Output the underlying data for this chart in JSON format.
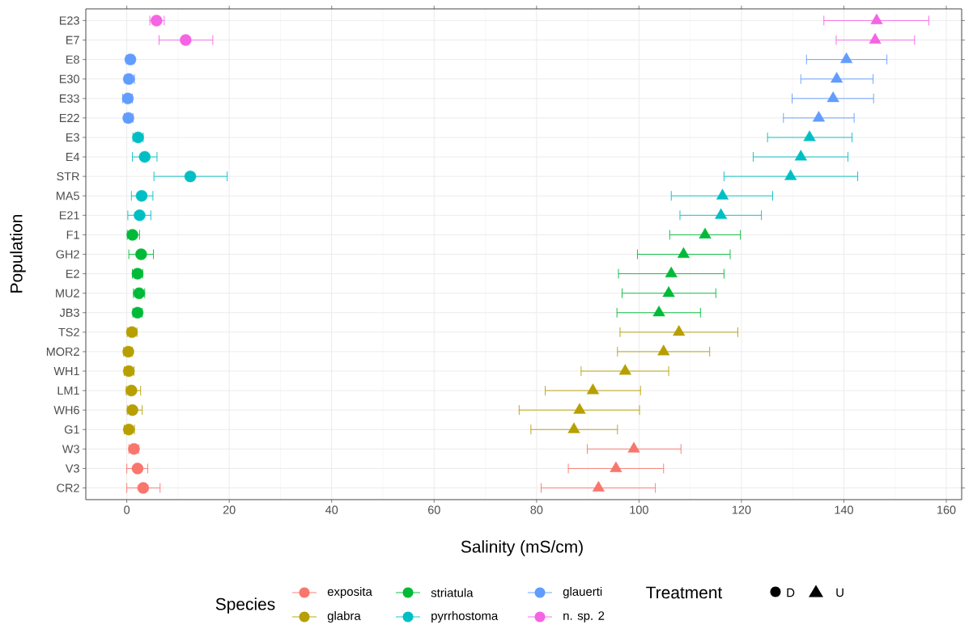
{
  "chart_data": {
    "type": "scatter",
    "orientation": "horizontal",
    "xlabel": "Salinity (mS/cm)",
    "ylabel": "Population",
    "categories": [
      "E23",
      "E7",
      "E8",
      "E30",
      "E33",
      "E22",
      "E3",
      "E4",
      "STR",
      "MA5",
      "E21",
      "F1",
      "GH2",
      "E2",
      "MU2",
      "JB3",
      "TS2",
      "MOR2",
      "WH1",
      "LM1",
      "WH6",
      "G1",
      "W3",
      "V3",
      "CR2"
    ],
    "xlim": [
      -8,
      163
    ],
    "xticks": [
      0,
      20,
      40,
      60,
      80,
      100,
      120,
      140,
      160
    ],
    "grid": true,
    "legend": "bottom",
    "legend_title": "Species",
    "annotations": [
      "Treatment",
      "D",
      "U"
    ],
    "series": [
      {
        "name": "exposita",
        "color": "#f8766d",
        "marker": "circle",
        "values": [
          null,
          null,
          null,
          null,
          null,
          null,
          null,
          null,
          null,
          null,
          null,
          null,
          null,
          null,
          null,
          null,
          null,
          null,
          null,
          null,
          null,
          null,
          1.4,
          2.1,
          3.2
        ],
        "errors": [
          null,
          null,
          null,
          null,
          null,
          null,
          null,
          null,
          null,
          null,
          null,
          null,
          null,
          null,
          null,
          null,
          null,
          null,
          null,
          null,
          null,
          null,
          [
            0.4,
            2.3
          ],
          [
            0.0,
            4.1
          ],
          [
            0.0,
            6.5
          ]
        ]
      },
      {
        "color": "#f8766d",
        "marker": "triangle",
        "values": [
          null,
          null,
          null,
          null,
          null,
          null,
          null,
          null,
          null,
          null,
          null,
          null,
          null,
          null,
          null,
          null,
          null,
          null,
          null,
          null,
          null,
          null,
          99.0,
          95.5,
          92.1
        ],
        "errors": [
          null,
          null,
          null,
          null,
          null,
          null,
          null,
          null,
          null,
          null,
          null,
          null,
          null,
          null,
          null,
          null,
          null,
          null,
          null,
          null,
          null,
          null,
          [
            89.9,
            108.2
          ],
          [
            86.2,
            104.8
          ],
          [
            80.9,
            103.2
          ]
        ]
      },
      {
        "name": "glabra",
        "color": "#b79f00",
        "marker": "circle",
        "values": [
          null,
          null,
          null,
          null,
          null,
          null,
          null,
          null,
          null,
          null,
          null,
          null,
          null,
          null,
          null,
          null,
          1.0,
          0.3,
          0.4,
          0.9,
          1.1,
          0.4,
          null,
          null,
          null
        ],
        "errors": [
          null,
          null,
          null,
          null,
          null,
          null,
          null,
          null,
          null,
          null,
          null,
          null,
          null,
          null,
          null,
          null,
          [
            0.1,
            2.0
          ],
          [
            -0.6,
            1.1
          ],
          [
            -0.5,
            1.4
          ],
          [
            -0.1,
            2.7
          ],
          [
            0.1,
            3.0
          ],
          [
            -0.5,
            1.5
          ],
          null,
          null,
          null
        ]
      },
      {
        "color": "#b79f00",
        "marker": "triangle",
        "values": [
          null,
          null,
          null,
          null,
          null,
          null,
          null,
          null,
          null,
          null,
          null,
          null,
          null,
          null,
          null,
          null,
          107.8,
          104.8,
          97.3,
          91.0,
          88.4,
          87.3,
          null,
          null,
          null
        ],
        "errors": [
          null,
          null,
          null,
          null,
          null,
          null,
          null,
          null,
          null,
          null,
          null,
          null,
          null,
          null,
          null,
          null,
          [
            96.3,
            119.3
          ],
          [
            95.8,
            113.8
          ],
          [
            88.7,
            105.8
          ],
          [
            81.7,
            100.3
          ],
          [
            76.6,
            100.1
          ],
          [
            78.9,
            95.8
          ],
          null,
          null,
          null
        ]
      },
      {
        "name": "striatula",
        "color": "#00ba38",
        "marker": "circle",
        "values": [
          null,
          null,
          null,
          null,
          null,
          null,
          null,
          null,
          null,
          null,
          null,
          1.1,
          2.8,
          2.1,
          2.4,
          2.1,
          null,
          null,
          null,
          null,
          null,
          null,
          null,
          null,
          null
        ],
        "errors": [
          null,
          null,
          null,
          null,
          null,
          null,
          null,
          null,
          null,
          null,
          null,
          [
            0.1,
            2.5
          ],
          [
            0.4,
            5.2
          ],
          [
            1.1,
            3.1
          ],
          [
            1.3,
            3.5
          ],
          [
            1.2,
            3.0
          ],
          null,
          null,
          null,
          null,
          null,
          null,
          null,
          null,
          null
        ]
      },
      {
        "color": "#00ba38",
        "marker": "triangle",
        "values": [
          null,
          null,
          null,
          null,
          null,
          null,
          null,
          null,
          null,
          null,
          null,
          112.9,
          108.7,
          106.3,
          105.8,
          103.9,
          null,
          null,
          null,
          null,
          null,
          null,
          null,
          null,
          null
        ],
        "errors": [
          null,
          null,
          null,
          null,
          null,
          null,
          null,
          null,
          null,
          null,
          null,
          [
            106.0,
            119.8
          ],
          [
            99.7,
            117.8
          ],
          [
            96.0,
            116.6
          ],
          [
            96.7,
            115.0
          ],
          [
            95.7,
            112.0
          ],
          null,
          null,
          null,
          null,
          null,
          null,
          null,
          null,
          null
        ]
      },
      {
        "name": "pyrrhostoma",
        "color": "#00bfc4",
        "marker": "circle",
        "values": [
          null,
          null,
          null,
          null,
          null,
          null,
          2.2,
          3.5,
          12.4,
          2.9,
          2.5,
          null,
          null,
          null,
          null,
          null,
          null,
          null,
          null,
          null,
          null,
          null,
          null,
          null,
          null
        ],
        "errors": [
          null,
          null,
          null,
          null,
          null,
          null,
          [
            1.2,
            3.2
          ],
          [
            1.1,
            5.9
          ],
          [
            5.3,
            19.6
          ],
          [
            0.9,
            5.1
          ],
          [
            0.2,
            4.7
          ],
          null,
          null,
          null,
          null,
          null,
          null,
          null,
          null,
          null,
          null,
          null,
          null,
          null,
          null
        ]
      },
      {
        "color": "#00bfc4",
        "marker": "triangle",
        "values": [
          null,
          null,
          null,
          null,
          null,
          null,
          133.3,
          131.6,
          129.6,
          116.3,
          116.0,
          null,
          null,
          null,
          null,
          null,
          null,
          null,
          null,
          null,
          null,
          null,
          null,
          null,
          null
        ],
        "errors": [
          null,
          null,
          null,
          null,
          null,
          null,
          [
            125.1,
            141.6
          ],
          [
            122.3,
            140.8
          ],
          [
            116.6,
            142.7
          ],
          [
            106.3,
            126.1
          ],
          [
            108.0,
            123.9
          ],
          null,
          null,
          null,
          null,
          null,
          null,
          null,
          null,
          null,
          null,
          null,
          null,
          null,
          null
        ]
      },
      {
        "name": "glauerti",
        "color": "#619cff",
        "marker": "circle",
        "values": [
          null,
          null,
          0.7,
          0.4,
          0.2,
          0.3,
          null,
          null,
          null,
          null,
          null,
          null,
          null,
          null,
          null,
          null,
          null,
          null,
          null,
          null,
          null,
          null,
          null,
          null,
          null
        ],
        "errors": [
          null,
          null,
          [
            -0.1,
            1.4
          ],
          [
            -0.4,
            1.5
          ],
          [
            -0.8,
            1.1
          ],
          [
            -0.5,
            1.2
          ],
          null,
          null,
          null,
          null,
          null,
          null,
          null,
          null,
          null,
          null,
          null,
          null,
          null,
          null,
          null,
          null,
          null,
          null,
          null
        ]
      },
      {
        "color": "#619cff",
        "marker": "triangle",
        "values": [
          null,
          null,
          140.5,
          138.6,
          137.9,
          135.1,
          null,
          null,
          null,
          null,
          null,
          null,
          null,
          null,
          null,
          null,
          null,
          null,
          null,
          null,
          null,
          null,
          null,
          null,
          null
        ],
        "errors": [
          null,
          null,
          [
            132.7,
            148.4
          ],
          [
            131.6,
            145.7
          ],
          [
            129.9,
            145.8
          ],
          [
            128.2,
            142.0
          ],
          null,
          null,
          null,
          null,
          null,
          null,
          null,
          null,
          null,
          null,
          null,
          null,
          null,
          null,
          null,
          null,
          null,
          null,
          null
        ]
      },
      {
        "name": "n. sp. 2",
        "color": "#f564e3",
        "marker": "circle",
        "values": [
          5.8,
          11.5,
          null,
          null,
          null,
          null,
          null,
          null,
          null,
          null,
          null,
          null,
          null,
          null,
          null,
          null,
          null,
          null,
          null,
          null,
          null,
          null,
          null,
          null,
          null
        ],
        "errors": [
          [
            4.5,
            7.3
          ],
          [
            6.3,
            16.8
          ],
          null,
          null,
          null,
          null,
          null,
          null,
          null,
          null,
          null,
          null,
          null,
          null,
          null,
          null,
          null,
          null,
          null,
          null,
          null,
          null,
          null,
          null,
          null
        ]
      },
      {
        "color": "#f564e3",
        "marker": "triangle",
        "values": [
          146.4,
          146.1,
          null,
          null,
          null,
          null,
          null,
          null,
          null,
          null,
          null,
          null,
          null,
          null,
          null,
          null,
          null,
          null,
          null,
          null,
          null,
          null,
          null,
          null,
          null
        ],
        "errors": [
          [
            136.1,
            156.6
          ],
          [
            138.5,
            153.8
          ],
          null,
          null,
          null,
          null,
          null,
          null,
          null,
          null,
          null,
          null,
          null,
          null,
          null,
          null,
          null,
          null,
          null,
          null,
          null,
          null,
          null,
          null,
          null
        ]
      }
    ]
  }
}
